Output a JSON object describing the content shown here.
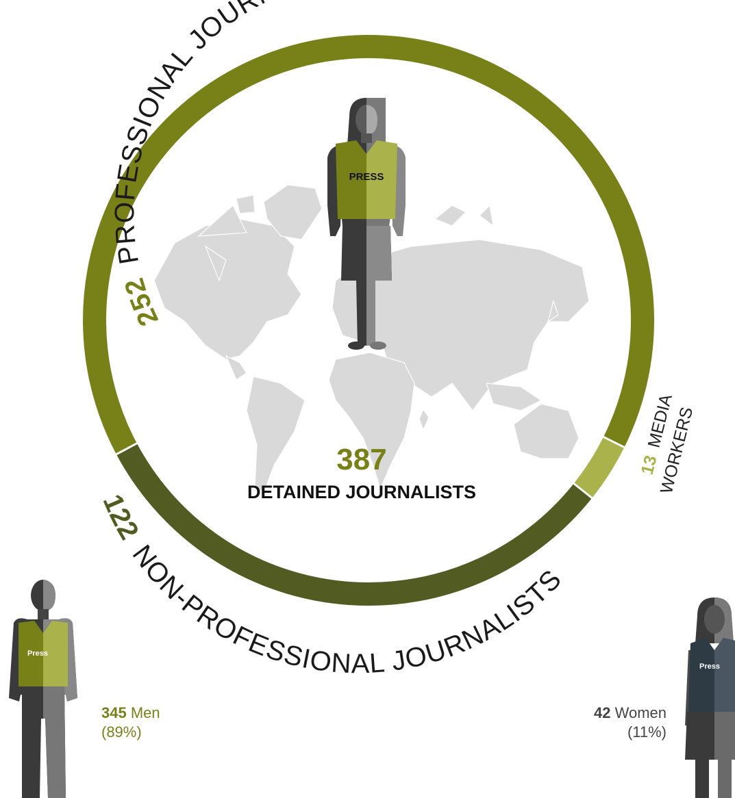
{
  "chart_data": {
    "type": "pie",
    "title": "",
    "total": {
      "value": 387,
      "label": "DETAINED JOURNALISTS"
    },
    "slices": [
      {
        "value": 252,
        "label": "PROFESSIONAL JOURNALISTS",
        "color": "#788118"
      },
      {
        "value": 13,
        "label_line1": "MEDIA",
        "label_line2": "WORKERS",
        "color": "#aab24c"
      },
      {
        "value": 122,
        "label": "NON-PROFESSIONAL JOURNALISTS",
        "color": "#525c22"
      }
    ],
    "gender": [
      {
        "value": 345,
        "label": "Men",
        "percent": "(89%)",
        "color": "#788118"
      },
      {
        "value": 42,
        "label": "Women",
        "percent": "(11%)",
        "color": "#444444"
      }
    ]
  },
  "figures": {
    "center_vest_label": "PRESS",
    "men_vest_label": "Press",
    "women_vest_label": "Press"
  },
  "colors": {
    "professional": "#788118",
    "media_workers": "#aab24c",
    "non_professional": "#525c22",
    "map": "#d9d9d9"
  }
}
